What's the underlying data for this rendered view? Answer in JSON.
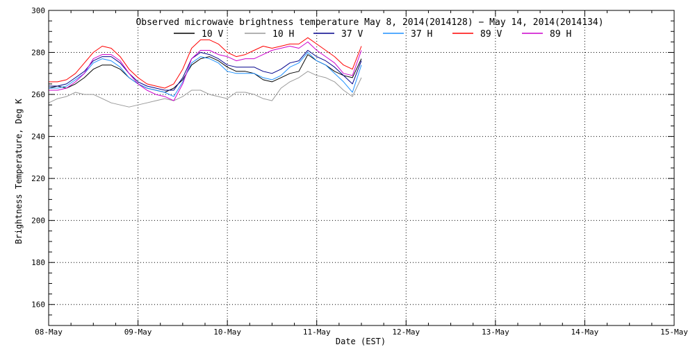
{
  "chart_data": {
    "type": "line",
    "title": "Observed microwave brightness temperature May  8, 2014(2014128) − May 14, 2014(2014134)",
    "ylabel": "Brightness Temperature, Deg K",
    "xlabel": "Date (EST)",
    "x_tick_labels": [
      "08-May",
      "09-May",
      "10-May",
      "11-May",
      "12-May",
      "13-May",
      "14-May",
      "15-May"
    ],
    "y_tick_labels": [
      "160",
      "180",
      "200",
      "220",
      "240",
      "260",
      "280",
      "300"
    ],
    "xlim": [
      0,
      7
    ],
    "ylim": [
      150,
      300
    ],
    "grid": true,
    "legend_position": "top",
    "x_unit": "days since 08-May",
    "x": [
      0.0,
      0.1,
      0.2,
      0.3,
      0.4,
      0.5,
      0.6,
      0.7,
      0.8,
      0.9,
      1.0,
      1.1,
      1.2,
      1.3,
      1.4,
      1.5,
      1.6,
      1.7,
      1.8,
      1.9,
      2.0,
      2.1,
      2.2,
      2.3,
      2.4,
      2.5,
      2.6,
      2.7,
      2.8,
      2.9,
      3.0,
      3.1,
      3.2,
      3.3,
      3.4,
      3.5
    ],
    "series": [
      {
        "name": "10 V",
        "color": "#000000",
        "values": [
          263,
          264,
          263,
          265,
          268,
          272,
          274,
          274,
          272,
          268,
          265,
          263,
          262,
          261,
          263,
          267,
          274,
          277,
          278,
          276,
          273,
          271,
          271,
          270,
          267,
          266,
          268,
          270,
          271,
          279,
          276,
          274,
          271,
          269,
          268,
          277
        ]
      },
      {
        "name": "10 H",
        "color": "#999999",
        "values": [
          256,
          258,
          259,
          261,
          260,
          260,
          258,
          256,
          255,
          254,
          255,
          256,
          257,
          258,
          257,
          259,
          262,
          262,
          260,
          259,
          258,
          261,
          261,
          260,
          258,
          257,
          263,
          266,
          268,
          271,
          269,
          268,
          266,
          262,
          259,
          268
        ]
      },
      {
        "name": "37 V",
        "color": "#00008b",
        "values": [
          264,
          264,
          265,
          268,
          271,
          276,
          278,
          278,
          275,
          270,
          266,
          264,
          263,
          262,
          262,
          268,
          277,
          280,
          279,
          277,
          274,
          273,
          273,
          273,
          271,
          270,
          272,
          275,
          276,
          281,
          278,
          276,
          273,
          269,
          265,
          276
        ]
      },
      {
        "name": "37 H",
        "color": "#1e90ff",
        "values": [
          263,
          263,
          264,
          267,
          270,
          275,
          277,
          276,
          273,
          268,
          265,
          263,
          262,
          261,
          259,
          266,
          275,
          278,
          277,
          275,
          271,
          270,
          270,
          270,
          268,
          267,
          269,
          273,
          275,
          280,
          276,
          274,
          270,
          266,
          261,
          274
        ]
      },
      {
        "name": "89 V",
        "color": "#ff0000",
        "values": [
          266,
          266,
          267,
          270,
          275,
          280,
          283,
          282,
          278,
          272,
          268,
          265,
          264,
          263,
          265,
          272,
          282,
          286,
          286,
          284,
          280,
          278,
          279,
          281,
          283,
          282,
          283,
          284,
          284,
          287,
          284,
          281,
          278,
          274,
          272,
          283
        ]
      },
      {
        "name": "89 H",
        "color": "#cc00cc",
        "values": [
          262,
          262,
          263,
          266,
          270,
          277,
          279,
          279,
          276,
          270,
          265,
          262,
          260,
          259,
          257,
          265,
          277,
          281,
          281,
          279,
          278,
          276,
          277,
          277,
          279,
          281,
          282,
          283,
          282,
          285,
          281,
          278,
          275,
          270,
          269,
          281
        ]
      }
    ]
  }
}
